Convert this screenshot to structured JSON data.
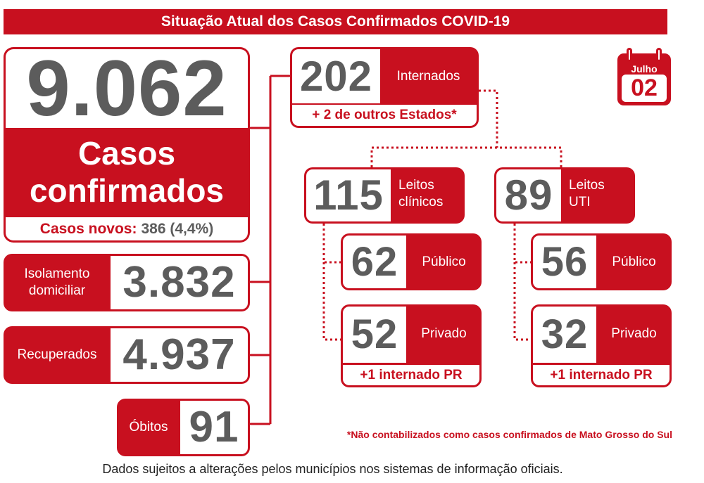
{
  "title": "Situação Atual dos Casos Confirmados COVID-19",
  "calendar": {
    "month": "Julho",
    "day": "02",
    "icon": "calendar-icon"
  },
  "confirmed": {
    "total": "9.062",
    "label_line1": "Casos",
    "label_line2": "confirmados",
    "new_label": "Casos novos:",
    "new_value": "386 (4,4%)"
  },
  "isolation": {
    "label_line1": "Isolamento",
    "label_line2": "domiciliar",
    "value": "3.832"
  },
  "recovered": {
    "label": "Recuperados",
    "value": "4.937"
  },
  "deaths": {
    "label": "Óbitos",
    "value": "91"
  },
  "hospitalized": {
    "value": "202",
    "label": "Internados",
    "note_plus": "+",
    "note": "2 de outros Estados*"
  },
  "clinical": {
    "value": "115",
    "label_line1": "Leitos",
    "label_line2": "clínicos",
    "public": {
      "value": "62",
      "label": "Público"
    },
    "private": {
      "value": "52",
      "label": "Privado",
      "note_plus": "+",
      "note": "1 internado PR"
    }
  },
  "icu": {
    "value": "89",
    "label_line1": "Leitos",
    "label_line2": "UTI",
    "public": {
      "value": "56",
      "label": "Público"
    },
    "private": {
      "value": "32",
      "label": "Privado",
      "note_plus": "+",
      "note": "1 internado PR"
    }
  },
  "footnote": "*Não contabilizados como casos confirmados de Mato Grosso do Sul",
  "source": "Dados sujeitos a alterações pelos municípios nos sistemas de informação oficiais.",
  "colors": {
    "accent": "#c8101f",
    "number": "#5c5c5c"
  }
}
